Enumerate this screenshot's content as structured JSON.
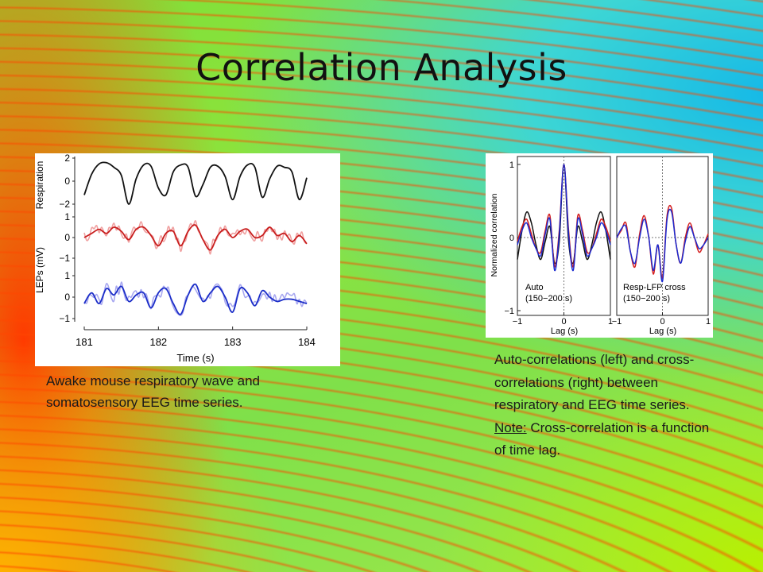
{
  "slide": {
    "title": "Correlation Analysis",
    "left_caption": "Awake mouse respiratory wave and somatosensory EEG time series.",
    "right_caption_a": "Auto-correlations (left) and cross-correlations (right) between respiratory and EEG time series. ",
    "right_caption_note": "Note:",
    "right_caption_b": " Cross-correlation is a function of time lag."
  },
  "colors": {
    "respiration": "#111111",
    "lep_red": "#c81e1e",
    "lep_red_raw": "#f0a0a0",
    "lep_blue": "#1c2ec8",
    "lep_blue_raw": "#a8a8f0",
    "auto_black": "#111111"
  },
  "chart_data": [
    {
      "type": "line",
      "xlabel": "Time (s)",
      "xlim": [
        181,
        184
      ],
      "x_ticks": [
        "181",
        "182",
        "183",
        "184"
      ],
      "ylabel_top": "Respiration",
      "ylabel_bottom": "LEPs (mV)",
      "panels": [
        {
          "name": "respiration",
          "ylim": [
            -2,
            2
          ],
          "y_ticks": [
            "2",
            "0",
            "−2"
          ],
          "x": [
            181.0,
            181.1,
            181.2,
            181.3,
            181.4,
            181.5,
            181.6,
            181.7,
            181.8,
            181.9,
            182.0,
            182.1,
            182.2,
            182.3,
            182.4,
            182.5,
            182.6,
            182.7,
            182.8,
            182.9,
            183.0,
            183.1,
            183.2,
            183.3,
            183.4,
            183.5,
            183.6,
            183.7,
            183.8,
            183.9,
            184.0
          ],
          "y": [
            -1.2,
            0.6,
            1.5,
            1.6,
            1.2,
            0.5,
            -2.0,
            0.2,
            1.4,
            1.3,
            -0.6,
            -1.2,
            0.8,
            1.4,
            1.2,
            -1.3,
            -0.3,
            1.2,
            1.3,
            0.4,
            -1.6,
            0.4,
            1.4,
            1.2,
            -1.4,
            0.2,
            1.3,
            1.2,
            0.8,
            -1.6,
            0.3
          ]
        },
        {
          "name": "LEP red",
          "ylim": [
            -1,
            1
          ],
          "y_ticks": [
            "1",
            "0",
            "−1"
          ],
          "x": [
            181.0,
            181.1,
            181.2,
            181.3,
            181.4,
            181.5,
            181.6,
            181.7,
            181.8,
            181.9,
            182.0,
            182.1,
            182.2,
            182.3,
            182.4,
            182.5,
            182.6,
            182.7,
            182.8,
            182.9,
            183.0,
            183.1,
            183.2,
            183.3,
            183.4,
            183.5,
            183.6,
            183.7,
            183.8,
            183.9,
            184.0
          ],
          "y": [
            0.0,
            0.2,
            0.4,
            0.2,
            0.5,
            0.3,
            -0.1,
            0.4,
            0.5,
            0.1,
            -0.4,
            0.2,
            0.3,
            -0.4,
            0.3,
            0.6,
            -0.1,
            -0.6,
            0.1,
            0.4,
            0.0,
            0.3,
            0.4,
            0.0,
            0.1,
            0.5,
            0.1,
            0.2,
            -0.2,
            0.1,
            -0.3
          ]
        },
        {
          "name": "LEP blue",
          "ylim": [
            -1,
            1
          ],
          "y_ticks": [
            "1",
            "0",
            "−1"
          ],
          "x": [
            181.0,
            181.1,
            181.2,
            181.3,
            181.4,
            181.5,
            181.6,
            181.7,
            181.8,
            181.9,
            182.0,
            182.1,
            182.2,
            182.3,
            182.4,
            182.5,
            182.6,
            182.7,
            182.8,
            182.9,
            183.0,
            183.1,
            183.2,
            183.3,
            183.4,
            183.5,
            183.6,
            183.7,
            183.8,
            183.9,
            184.0
          ],
          "y": [
            -0.3,
            0.2,
            -0.3,
            0.4,
            0.1,
            0.5,
            -0.2,
            0.1,
            0.2,
            -0.5,
            0.2,
            0.4,
            -0.3,
            -0.8,
            0.1,
            0.6,
            -0.2,
            0.2,
            0.5,
            0.0,
            -0.7,
            0.4,
            0.2,
            -0.4,
            0.3,
            0.0,
            -0.2,
            -0.1,
            -0.1,
            -0.2,
            -0.3
          ]
        }
      ]
    },
    {
      "type": "line",
      "ylabel": "Normalized correlation",
      "panels": [
        {
          "label_line1": "Auto",
          "label_line2": "(150−200 s)",
          "xlabel": "Lag (s)",
          "xlim": [
            -1,
            1
          ],
          "ylim": [
            -1,
            1
          ],
          "x_ticks": [
            "−1",
            "0",
            "1"
          ],
          "y_ticks": [
            "1",
            "0",
            "−1"
          ],
          "series": [
            {
              "color": "black",
              "x": [
                -1,
                -0.9,
                -0.8,
                -0.7,
                -0.6,
                -0.5,
                -0.4,
                -0.3,
                -0.2,
                -0.1,
                0,
                0.1,
                0.2,
                0.3,
                0.4,
                0.5,
                0.6,
                0.7,
                0.8,
                0.9,
                1
              ],
              "y": [
                -0.3,
                0.1,
                0.35,
                0.2,
                -0.1,
                -0.3,
                -0.05,
                0.15,
                -0.35,
                -0.05,
                1.0,
                -0.05,
                -0.35,
                0.15,
                -0.05,
                -0.3,
                -0.1,
                0.2,
                0.35,
                0.1,
                -0.3
              ]
            },
            {
              "color": "red",
              "x": [
                -1,
                -0.9,
                -0.8,
                -0.7,
                -0.6,
                -0.5,
                -0.4,
                -0.3,
                -0.2,
                -0.1,
                0,
                0.1,
                0.2,
                0.3,
                0.4,
                0.5,
                0.6,
                0.7,
                0.8,
                0.9,
                1
              ],
              "y": [
                -0.05,
                0.15,
                0.25,
                0.05,
                -0.15,
                -0.2,
                0.1,
                0.3,
                -0.4,
                0.1,
                1.0,
                0.1,
                -0.4,
                0.3,
                0.1,
                -0.2,
                -0.15,
                0.05,
                0.25,
                0.15,
                -0.05
              ]
            },
            {
              "color": "blue",
              "x": [
                -1,
                -0.9,
                -0.8,
                -0.7,
                -0.6,
                -0.5,
                -0.4,
                -0.3,
                -0.2,
                -0.1,
                0,
                0.1,
                0.2,
                0.3,
                0.4,
                0.5,
                0.6,
                0.7,
                0.8,
                0.9,
                1
              ],
              "y": [
                -0.1,
                0.1,
                0.2,
                0.0,
                -0.15,
                -0.25,
                0.05,
                0.25,
                -0.45,
                0.05,
                1.0,
                0.05,
                -0.45,
                0.25,
                0.05,
                -0.25,
                -0.15,
                0.0,
                0.2,
                0.1,
                -0.1
              ]
            }
          ]
        },
        {
          "label_line1": "Resp-LFP cross",
          "label_line2": "(150−200 s)",
          "xlabel": "Lag (s)",
          "xlim": [
            -1,
            1
          ],
          "ylim": [
            -1,
            1
          ],
          "x_ticks": [
            "−1",
            "0",
            "1"
          ],
          "series": [
            {
              "color": "red",
              "x": [
                -1,
                -0.9,
                -0.8,
                -0.7,
                -0.6,
                -0.5,
                -0.4,
                -0.3,
                -0.2,
                -0.1,
                0,
                0.1,
                0.2,
                0.3,
                0.4,
                0.5,
                0.6,
                0.7,
                0.8,
                0.9,
                1
              ],
              "y": [
                0.0,
                0.1,
                0.2,
                -0.2,
                -0.4,
                0.05,
                0.3,
                0.0,
                -0.5,
                -0.1,
                -0.55,
                0.3,
                0.4,
                -0.1,
                -0.35,
                0.0,
                0.2,
                0.0,
                -0.2,
                -0.1,
                0.05
              ]
            },
            {
              "color": "blue",
              "x": [
                -1,
                -0.9,
                -0.8,
                -0.7,
                -0.6,
                -0.5,
                -0.4,
                -0.3,
                -0.2,
                -0.1,
                0,
                0.1,
                0.2,
                0.3,
                0.4,
                0.5,
                0.6,
                0.7,
                0.8,
                0.9,
                1
              ],
              "y": [
                0.0,
                0.12,
                0.15,
                -0.2,
                -0.35,
                0.0,
                0.25,
                0.0,
                -0.45,
                -0.1,
                -0.6,
                0.25,
                0.35,
                -0.1,
                -0.35,
                -0.05,
                0.15,
                0.0,
                -0.15,
                -0.1,
                0.0
              ]
            }
          ]
        }
      ]
    }
  ]
}
